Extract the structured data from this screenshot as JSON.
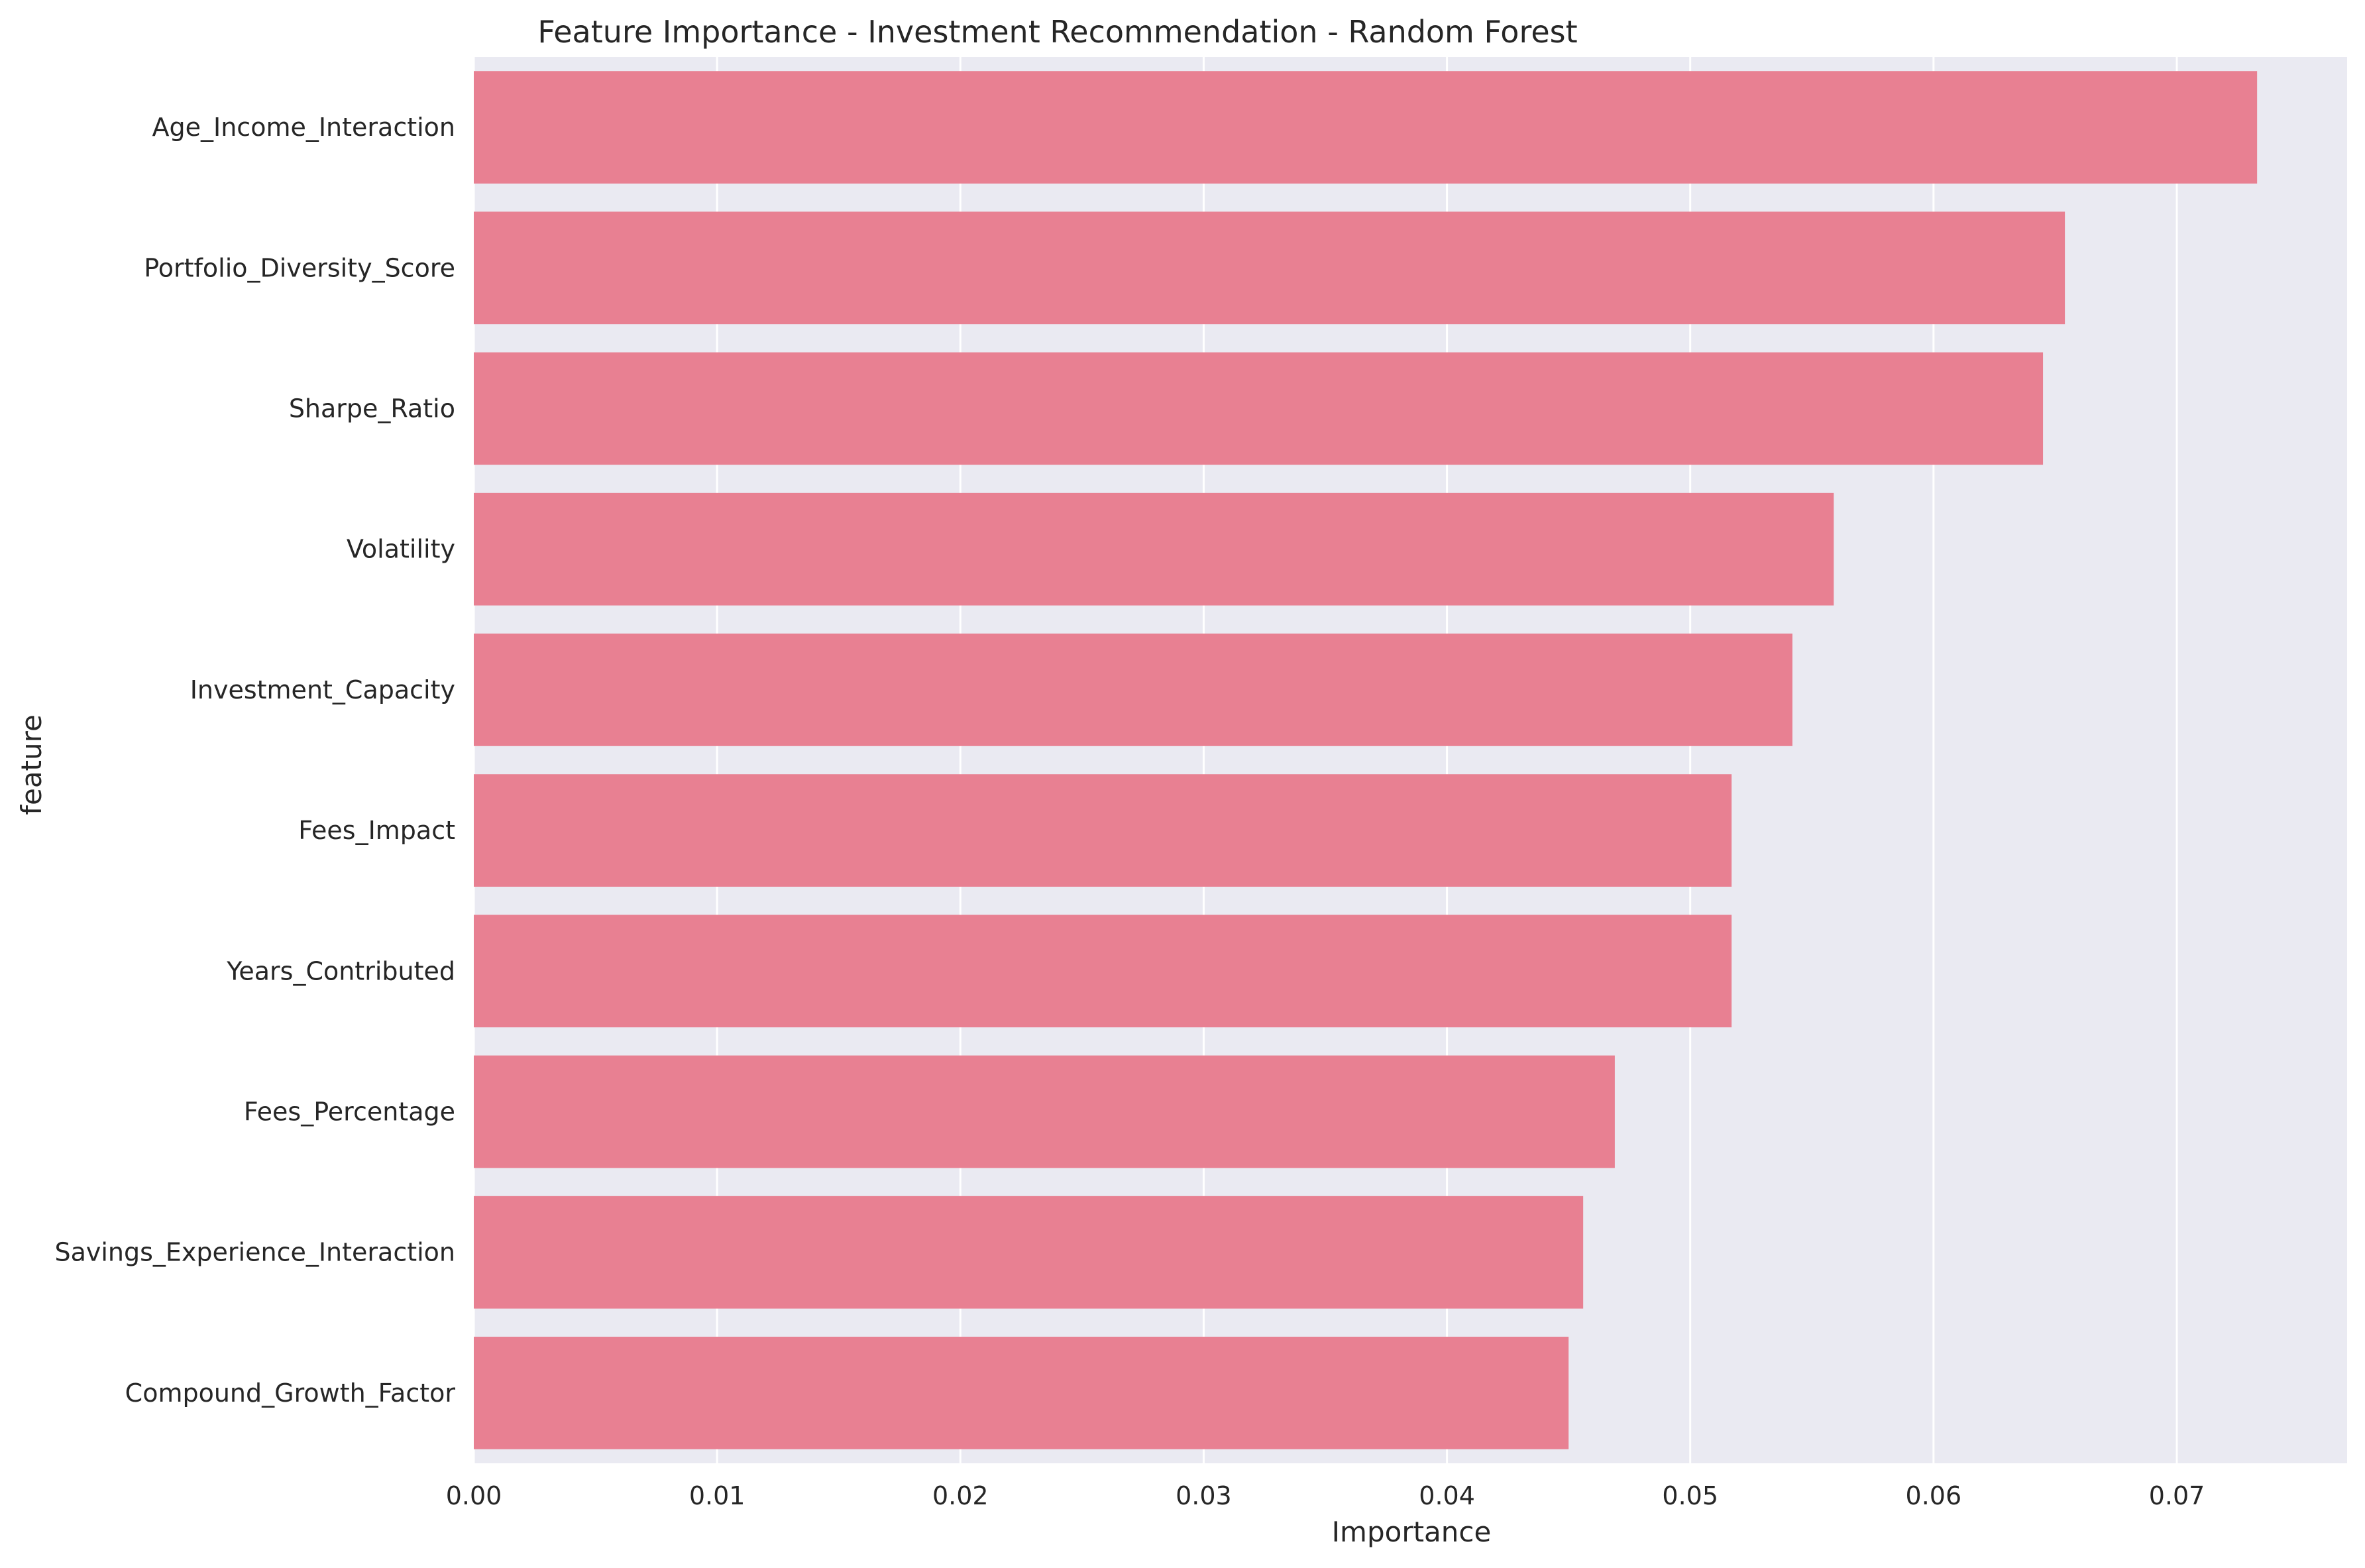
{
  "chart_data": {
    "type": "bar",
    "orientation": "horizontal",
    "title": "Feature Importance - Investment Recommendation - Random Forest",
    "xlabel": "Importance",
    "ylabel": "feature",
    "categories": [
      "Age_Income_Interaction",
      "Portfolio_Diversity_Score",
      "Sharpe_Ratio",
      "Volatility",
      "Investment_Capacity",
      "Fees_Impact",
      "Years_Contributed",
      "Fees_Percentage",
      "Savings_Experience_Interaction",
      "Compound_Growth_Factor"
    ],
    "values": [
      0.0733,
      0.0654,
      0.0645,
      0.0559,
      0.0542,
      0.0517,
      0.0517,
      0.0469,
      0.0456,
      0.045
    ],
    "xlim": [
      0,
      0.077
    ],
    "xticks": [
      0.0,
      0.01,
      0.02,
      0.03,
      0.04,
      0.05,
      0.06,
      0.07
    ],
    "xtick_labels": [
      "0.00",
      "0.01",
      "0.02",
      "0.03",
      "0.04",
      "0.05",
      "0.06",
      "0.07"
    ],
    "grid": true,
    "bar_color": "#e88092",
    "background_color": "#eaeaf2",
    "grid_color": "#ffffff"
  }
}
